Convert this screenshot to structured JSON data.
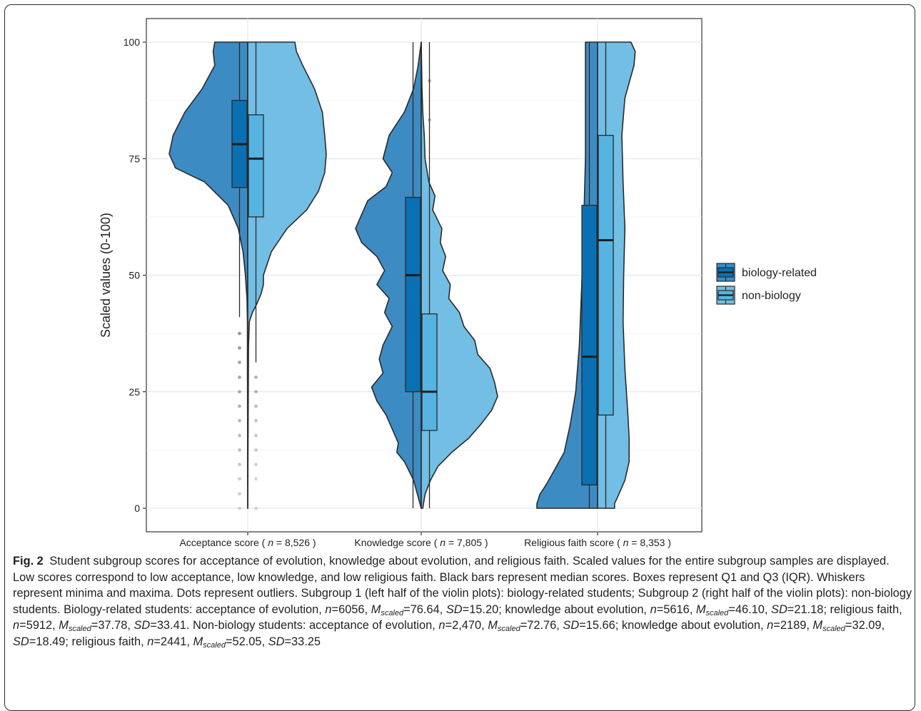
{
  "chart_data": {
    "type": "split-violin-boxplot",
    "ylabel": "Scaled values (0-100)",
    "xlabel": "",
    "ylim": [
      0,
      100
    ],
    "yticks": [
      0,
      25,
      50,
      75,
      100
    ],
    "grid": true,
    "legend_position": "right",
    "categories": [
      "Acceptance score ( n = 8,526 )",
      "Knowledge score ( n = 7,805 )",
      "Religious faith score ( n = 8,353 )"
    ],
    "series": [
      {
        "name": "biology-related",
        "color": "#3d8bc3",
        "box_color": "#0a70b3",
        "groups": [
          {
            "min": 41,
            "q1": 68.8,
            "median": 78.1,
            "q3": 87.5,
            "max": 100,
            "outliers": [
              37.5,
              34.4,
              31.3,
              28.1,
              25,
              21.9,
              18.8,
              15.6,
              12.5,
              9.4,
              6.3,
              3.1,
              0
            ],
            "density": [
              [
                100,
                0.42
              ],
              [
                98,
                0.44
              ],
              [
                95,
                0.42
              ],
              [
                90,
                0.58
              ],
              [
                85,
                0.8
              ],
              [
                80,
                0.95
              ],
              [
                76,
                1.0
              ],
              [
                73,
                0.92
              ],
              [
                70,
                0.55
              ],
              [
                65,
                0.25
              ],
              [
                60,
                0.12
              ],
              [
                55,
                0.06
              ],
              [
                50,
                0.03
              ],
              [
                45,
                0.01
              ],
              [
                40,
                0.004
              ],
              [
                30,
                0.004
              ],
              [
                20,
                0.002
              ],
              [
                0,
                0.0
              ]
            ]
          },
          {
            "min": 0,
            "q1": 25,
            "median": 50,
            "q3": 66.7,
            "max": 100,
            "outliers": [],
            "density": [
              [
                100,
                0.0
              ],
              [
                95,
                0.04
              ],
              [
                90,
                0.1
              ],
              [
                85,
                0.22
              ],
              [
                80,
                0.42
              ],
              [
                75,
                0.5
              ],
              [
                72,
                0.38
              ],
              [
                69,
                0.46
              ],
              [
                66,
                0.7
              ],
              [
                63,
                0.78
              ],
              [
                60,
                0.86
              ],
              [
                57,
                0.78
              ],
              [
                54,
                0.58
              ],
              [
                51,
                0.48
              ],
              [
                48,
                0.58
              ],
              [
                45,
                0.42
              ],
              [
                42,
                0.48
              ],
              [
                39,
                0.38
              ],
              [
                35,
                0.5
              ],
              [
                32,
                0.55
              ],
              [
                29,
                0.5
              ],
              [
                26,
                0.65
              ],
              [
                23,
                0.58
              ],
              [
                20,
                0.46
              ],
              [
                17,
                0.38
              ],
              [
                14,
                0.3
              ],
              [
                12,
                0.32
              ],
              [
                10,
                0.22
              ],
              [
                6,
                0.1
              ],
              [
                3,
                0.05
              ],
              [
                0,
                0.0
              ]
            ]
          },
          {
            "min": 0,
            "q1": 5,
            "median": 32.5,
            "q3": 65,
            "max": 100,
            "outliers": [],
            "density": [
              [
                100,
                0.2
              ],
              [
                95,
                0.2
              ],
              [
                85,
                0.2
              ],
              [
                75,
                0.2
              ],
              [
                65,
                0.22
              ],
              [
                55,
                0.24
              ],
              [
                45,
                0.27
              ],
              [
                35,
                0.3
              ],
              [
                25,
                0.36
              ],
              [
                18,
                0.45
              ],
              [
                12,
                0.55
              ],
              [
                8,
                0.72
              ],
              [
                5,
                0.85
              ],
              [
                3,
                0.95
              ],
              [
                1,
                1.0
              ],
              [
                0,
                1.0
              ]
            ]
          }
        ]
      },
      {
        "name": "non-biology",
        "color": "#72bee4",
        "box_color": "#56b4e3",
        "groups": [
          {
            "min": 31.3,
            "q1": 62.5,
            "median": 75,
            "q3": 84.4,
            "max": 100,
            "outliers": [
              28.1,
              25,
              21.9,
              18.8,
              15.6,
              12.5,
              9.4,
              6.3,
              0
            ],
            "density": [
              [
                100,
                0.6
              ],
              [
                98,
                0.62
              ],
              [
                95,
                0.7
              ],
              [
                90,
                0.85
              ],
              [
                85,
                0.95
              ],
              [
                80,
                0.98
              ],
              [
                76,
                1.0
              ],
              [
                72,
                0.98
              ],
              [
                68,
                0.9
              ],
              [
                64,
                0.75
              ],
              [
                60,
                0.5
              ],
              [
                55,
                0.3
              ],
              [
                50,
                0.2
              ],
              [
                48,
                0.2
              ],
              [
                46,
                0.17
              ],
              [
                44,
                0.12
              ],
              [
                42,
                0.06
              ],
              [
                40,
                0.02
              ],
              [
                35,
                0.01
              ],
              [
                0,
                0.0
              ]
            ]
          },
          {
            "min": 0,
            "q1": 16.7,
            "median": 25,
            "q3": 41.7,
            "max": 100,
            "outliers": [
              91.7,
              83.3
            ],
            "density": [
              [
                100,
                0.0
              ],
              [
                90,
                0.01
              ],
              [
                85,
                0.02
              ],
              [
                80,
                0.04
              ],
              [
                75,
                0.05
              ],
              [
                70,
                0.1
              ],
              [
                67,
                0.18
              ],
              [
                64,
                0.15
              ],
              [
                60,
                0.27
              ],
              [
                57,
                0.25
              ],
              [
                54,
                0.32
              ],
              [
                51,
                0.28
              ],
              [
                48,
                0.38
              ],
              [
                45,
                0.36
              ],
              [
                42,
                0.5
              ],
              [
                39,
                0.56
              ],
              [
                36,
                0.7
              ],
              [
                33,
                0.74
              ],
              [
                30,
                0.9
              ],
              [
                27,
                0.96
              ],
              [
                24,
                1.0
              ],
              [
                21,
                0.92
              ],
              [
                18,
                0.78
              ],
              [
                15,
                0.62
              ],
              [
                12,
                0.4
              ],
              [
                9,
                0.22
              ],
              [
                6,
                0.12
              ],
              [
                3,
                0.05
              ],
              [
                0,
                0.02
              ]
            ]
          },
          {
            "min": 0,
            "q1": 20,
            "median": 57.5,
            "q3": 80,
            "max": 100,
            "outliers": [],
            "density": [
              [
                100,
                0.55
              ],
              [
                98,
                0.62
              ],
              [
                95,
                0.6
              ],
              [
                88,
                0.45
              ],
              [
                80,
                0.4
              ],
              [
                70,
                0.42
              ],
              [
                60,
                0.45
              ],
              [
                50,
                0.43
              ],
              [
                40,
                0.42
              ],
              [
                30,
                0.45
              ],
              [
                20,
                0.5
              ],
              [
                15,
                0.52
              ],
              [
                10,
                0.52
              ],
              [
                6,
                0.45
              ],
              [
                3,
                0.35
              ],
              [
                1,
                0.28
              ],
              [
                0,
                0.28
              ]
            ]
          }
        ]
      }
    ]
  },
  "caption": {
    "label": "Fig. 2",
    "p1": "Student subgroup scores for acceptance of evolution, knowledge about evolution, and religious faith. Scaled values for the entire subgroup samples are displayed. Low scores correspond to low acceptance, low knowledge, and low religious faith. Black bars represent median scores. Boxes represent Q1 and Q3 (IQR). Whiskers represent minima and maxima. Dots represent outliers. Subgroup 1 (left half of the violin plots): biology-related students; Subgroup 2 (right half of the violin plots): non-biology students. Biology-related students: acceptance of evolution,",
    "n": "n",
    "eq": "=",
    "m": "M",
    "m_sub": "scaled",
    "sd": "SD",
    "bio_acc_n": "6056",
    "bio_acc_m": "76.64",
    "bio_acc_sd": "15.20",
    "knowledge_label": "knowledge about evolution,",
    "bio_kn_n": "5616",
    "bio_kn_m": "46.10",
    "bio_kn_sd": "21.18",
    "faith_label": "religious faith,",
    "bio_rf_n": "5912",
    "bio_rf_m": "37.78",
    "bio_rf_sd": "33.41",
    "nonbio_intro": "Non-biology students: acceptance of evolution,",
    "non_acc_n": "2,470",
    "non_acc_m": "72.76",
    "non_acc_sd": "15.66",
    "non_kn_n": "2189",
    "non_kn_m": "32.09",
    "non_kn_sd": "18.49",
    "non_rf_n": "2441",
    "non_rf_m": "52.05",
    "non_rf_sd": "33.25"
  }
}
